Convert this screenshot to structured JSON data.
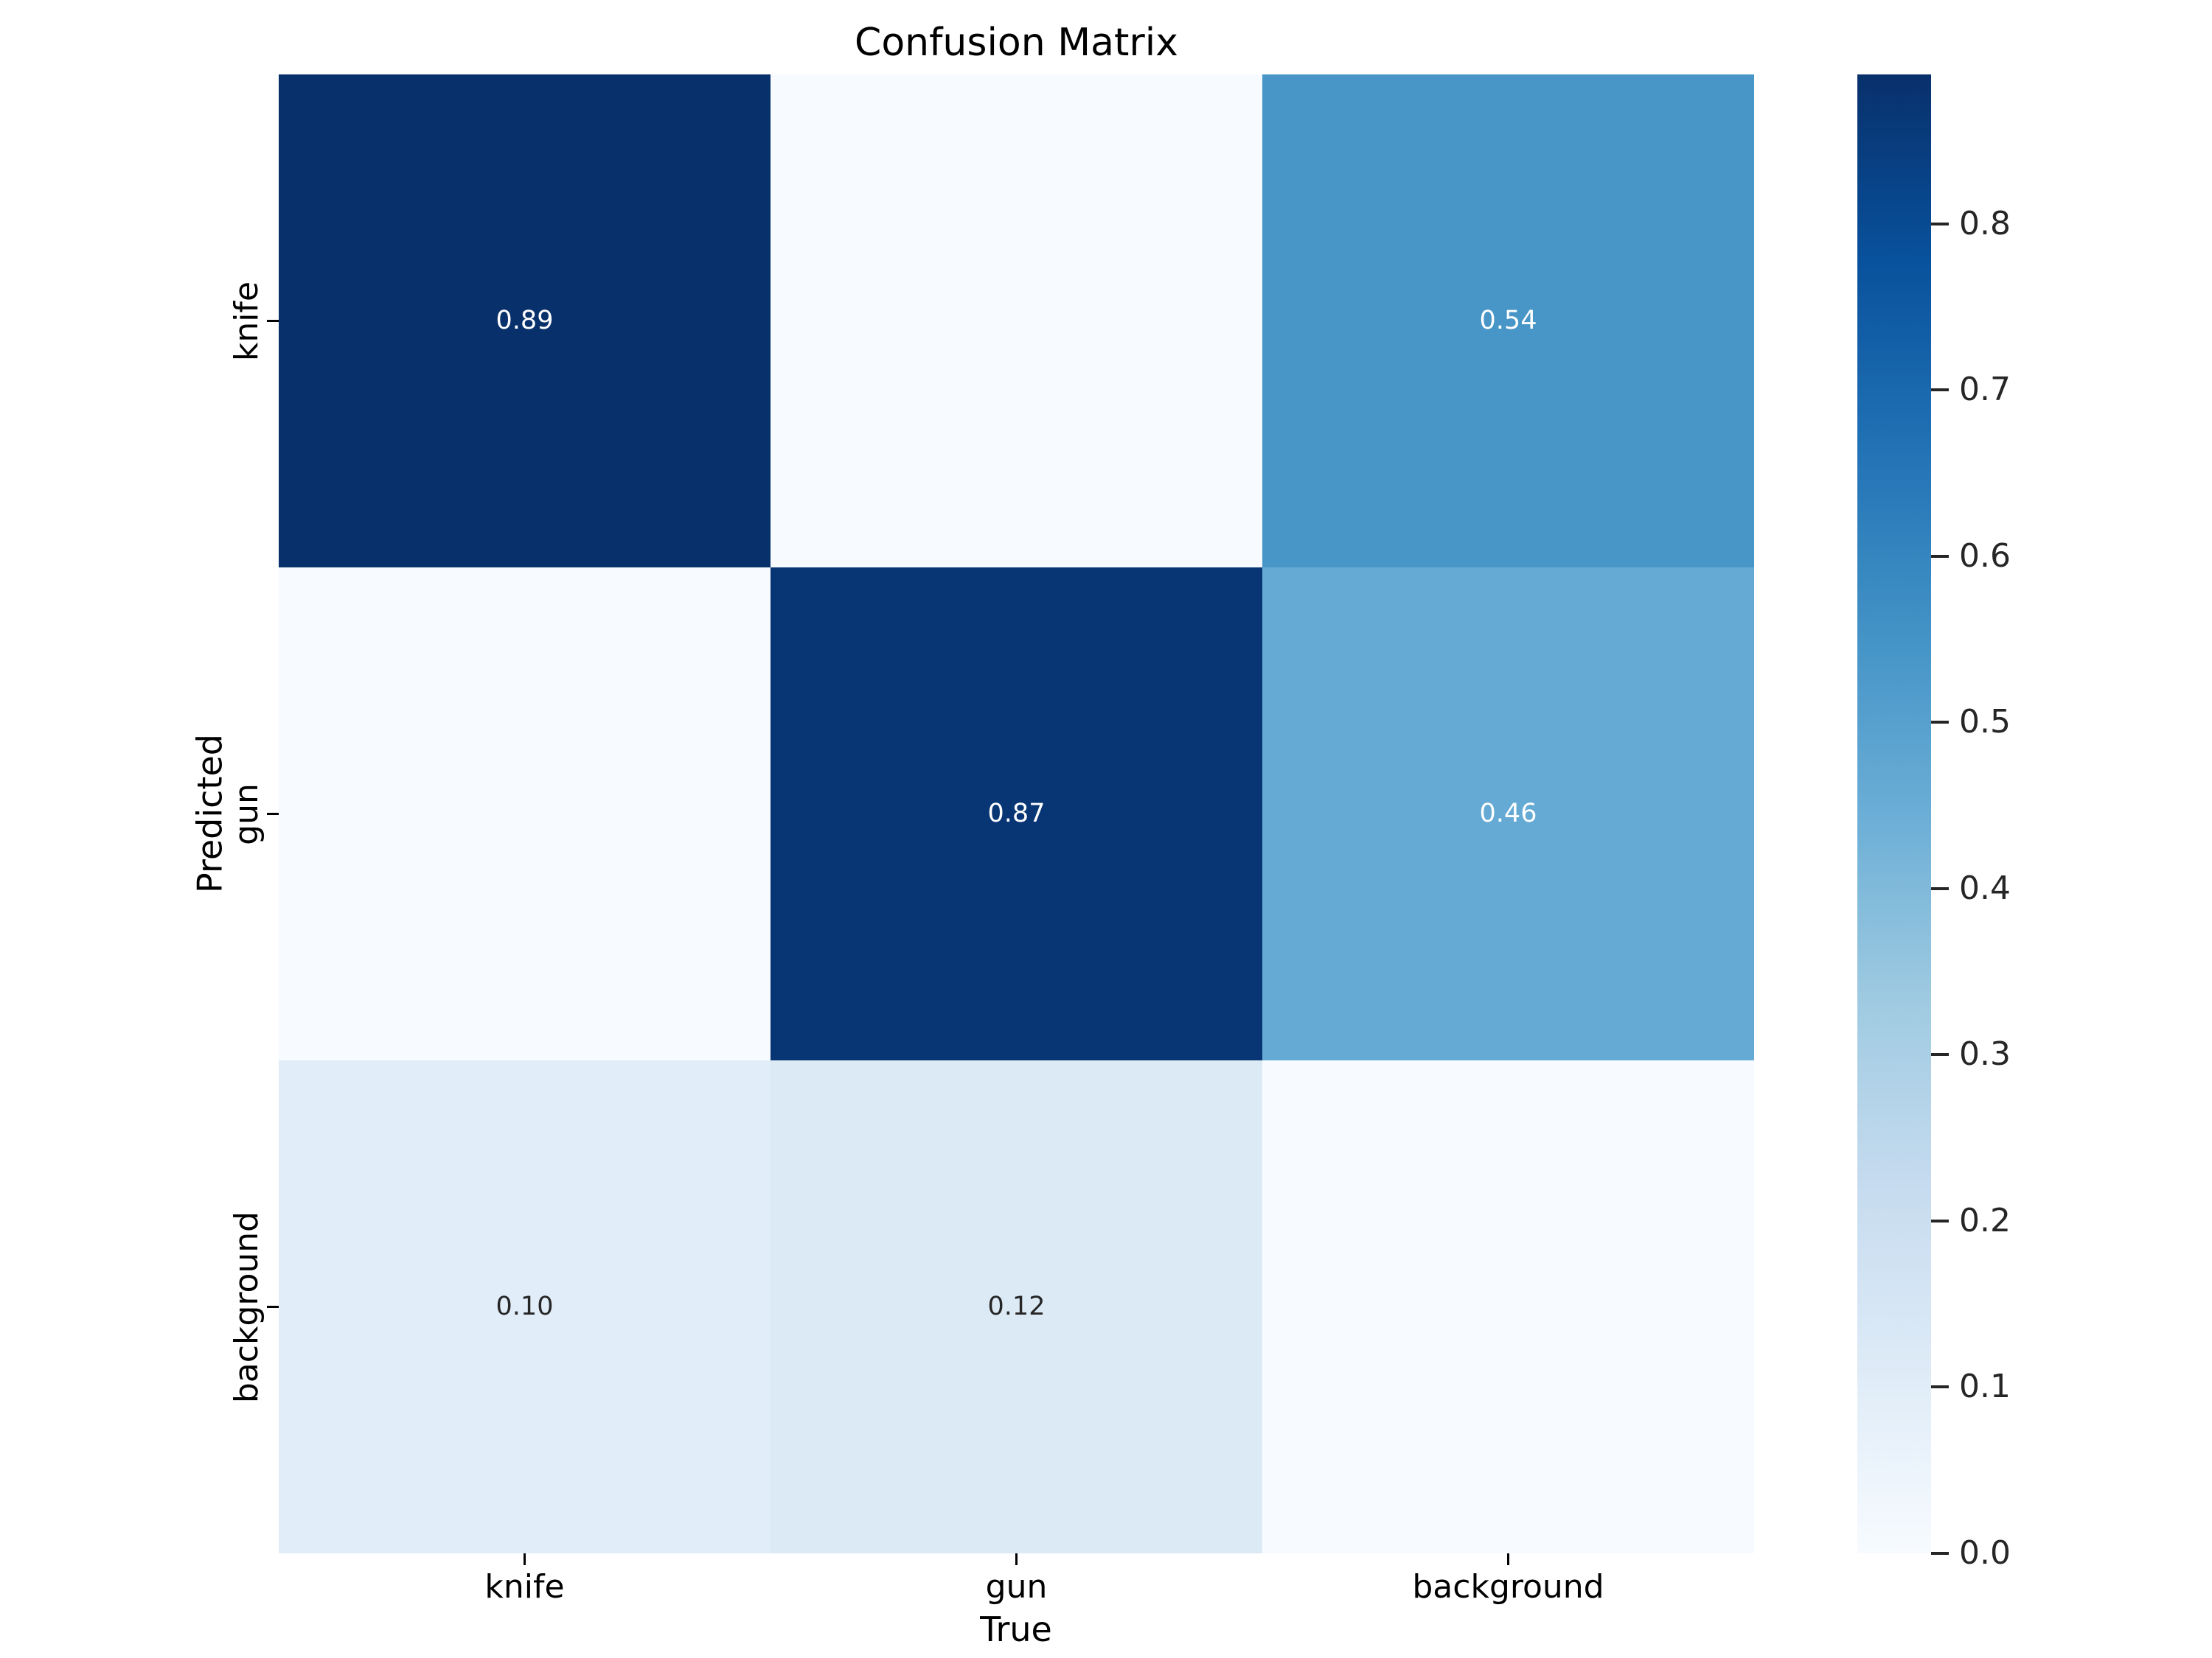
{
  "title": "Confusion Matrix",
  "colors": {
    "figure_background": "#ffffff",
    "annotation_light_text": "#ffffff",
    "annotation_dark_text": "#262626",
    "axis_text": "#000000",
    "cell_max": "#08306b",
    "cell_min": "#f7fbff"
  },
  "chart_data": {
    "type": "heatmap",
    "title": "Confusion Matrix",
    "xlabel": "True",
    "ylabel": "Predicted",
    "x_categories": [
      "knife",
      "gun",
      "background"
    ],
    "y_categories": [
      "knife",
      "gun",
      "background"
    ],
    "values": [
      [
        0.89,
        0.0,
        0.54
      ],
      [
        0.0,
        0.87,
        0.46
      ],
      [
        0.1,
        0.12,
        0.0
      ]
    ],
    "annotations": [
      [
        "0.89",
        "",
        "0.54"
      ],
      [
        "",
        "0.87",
        "0.46"
      ],
      [
        "0.10",
        "0.12",
        ""
      ]
    ],
    "colormap": "Blues",
    "vmin": 0.0,
    "vmax": 0.89,
    "grid": false,
    "colorbar": {
      "position": "right",
      "ticks": [
        "0.0",
        "0.1",
        "0.2",
        "0.3",
        "0.4",
        "0.5",
        "0.6",
        "0.7",
        "0.8"
      ]
    },
    "colormap_stops": [
      "#f7fbff",
      "#deebf7",
      "#c6dbef",
      "#9ecae1",
      "#6baed6",
      "#4292c6",
      "#2171b5",
      "#08519c",
      "#08306b"
    ]
  }
}
